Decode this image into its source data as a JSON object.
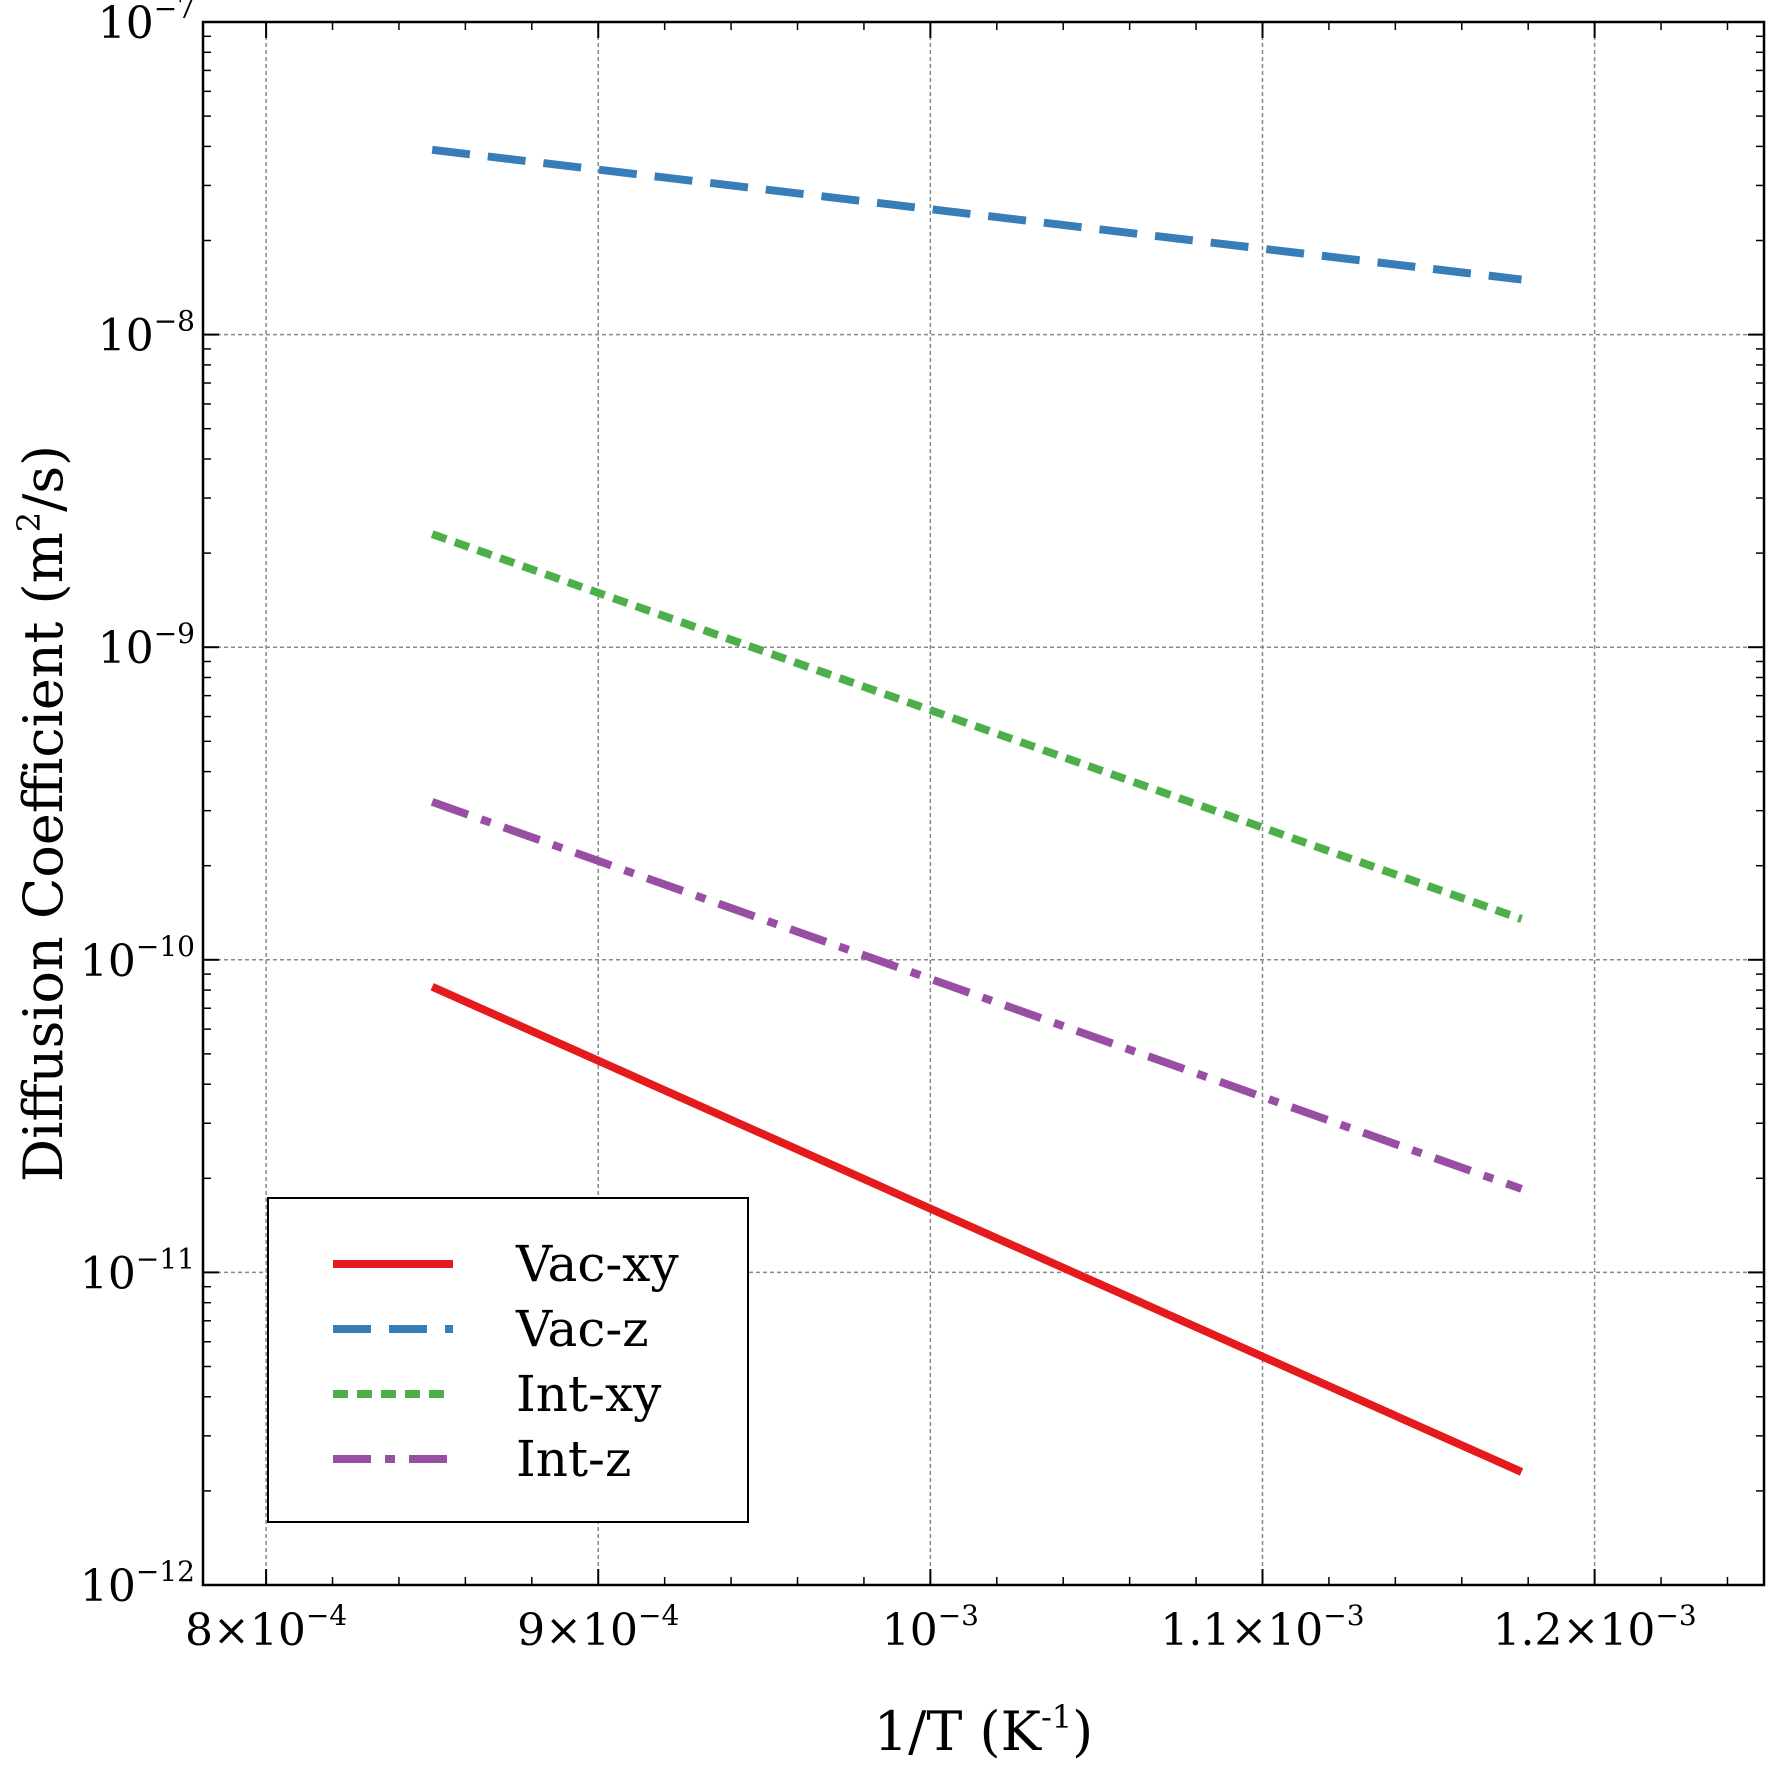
{
  "chart_data": {
    "type": "line",
    "xlabel": "1/T (K-1)",
    "ylabel": "Diffusion Coefficient (m2/s)",
    "xlim": [
      0.000781,
      0.001251
    ],
    "ylim": [
      1e-12,
      1e-07
    ],
    "yscale": "log",
    "grid": true,
    "legend_position": "bottom-left",
    "x_ticks": [
      {
        "value": 0.0008,
        "mantissa": "8",
        "times": "×",
        "base": "10",
        "exponent": "−4"
      },
      {
        "value": 0.0009,
        "mantissa": "9",
        "times": "×",
        "base": "10",
        "exponent": "−4"
      },
      {
        "value": 0.001,
        "mantissa": "",
        "times": "",
        "base": "10",
        "exponent": "−3"
      },
      {
        "value": 0.0011,
        "mantissa": "1.1",
        "times": "×",
        "base": "10",
        "exponent": "−3"
      },
      {
        "value": 0.0012,
        "mantissa": "1.2",
        "times": "×",
        "base": "10",
        "exponent": "−3"
      }
    ],
    "y_ticks": [
      {
        "value": 1e-07,
        "base": "10",
        "exponent": "−7"
      },
      {
        "value": 1e-08,
        "base": "10",
        "exponent": "−8"
      },
      {
        "value": 1e-09,
        "base": "10",
        "exponent": "−9"
      },
      {
        "value": 1e-10,
        "base": "10",
        "exponent": "−10"
      },
      {
        "value": 1e-11,
        "base": "10",
        "exponent": "−11"
      },
      {
        "value": 1e-12,
        "base": "10",
        "exponent": "−12"
      }
    ],
    "series": [
      {
        "name": "Vac-xy",
        "color": "#e41a1c",
        "dash": "solid",
        "x": [
          0.00085,
          0.001178
        ],
        "y": [
          8.2e-11,
          2.3e-12
        ]
      },
      {
        "name": "Vac-z",
        "color": "#377eb8",
        "dash": "dashed",
        "x": [
          0.00085,
          0.001178
        ],
        "y": [
          3.9e-08,
          1.5e-08
        ]
      },
      {
        "name": "Int-xy",
        "color": "#4daf4a",
        "dash": "dotted",
        "x": [
          0.00085,
          0.001178
        ],
        "y": [
          2.3e-09,
          1.35e-10
        ]
      },
      {
        "name": "Int-z",
        "color": "#984ea3",
        "dash": "dashdot",
        "x": [
          0.00085,
          0.001178
        ],
        "y": [
          3.2e-10,
          1.85e-11
        ]
      }
    ]
  }
}
